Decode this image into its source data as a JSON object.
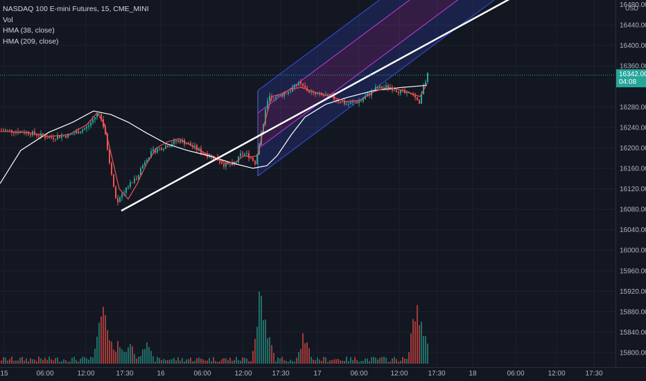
{
  "legend": {
    "symbol": "NASDAQ 100 E-mini Futures, 15, CME_MINI",
    "vol": "Vol",
    "hma1": "HMA (38, close)",
    "hma2": "HMA (209, close)"
  },
  "currency": "USD",
  "last_price": {
    "value": "16342.00",
    "countdown": "04:08",
    "price": 16342
  },
  "colors": {
    "background": "#131722",
    "grid": "#1e222d",
    "up": "#26a69a",
    "down": "#ef5350",
    "hma_fast": "#ef5350",
    "hma_slow": "#ffffff",
    "trendline": "#ffffff",
    "channel_outer": "#3d5afe",
    "channel_inner": "#e040fb"
  },
  "chart_data": {
    "type": "candlestick",
    "price_axis": {
      "ticks": [
        16440,
        16400,
        16360,
        16280,
        16240,
        16200,
        16160,
        16120,
        16080,
        16040,
        16000,
        15960,
        15920,
        15880,
        15840,
        15800
      ],
      "top_label": "16480.00"
    },
    "time_axis": {
      "labels": [
        "15",
        "06:00",
        "12:00",
        "17:30",
        "16",
        "06:00",
        "12:00",
        "17:30",
        "17",
        "06:00",
        "12:00",
        "17:30",
        "18",
        "06:00",
        "12:00",
        "17:30"
      ]
    },
    "price_path": [
      [
        0,
        16235
      ],
      [
        40,
        16230
      ],
      [
        70,
        16220
      ],
      [
        100,
        16225
      ],
      [
        125,
        16240
      ],
      [
        140,
        16268
      ],
      [
        150,
        16240
      ],
      [
        158,
        16160
      ],
      [
        168,
        16090
      ],
      [
        180,
        16120
      ],
      [
        195,
        16140
      ],
      [
        210,
        16180
      ],
      [
        222,
        16195
      ],
      [
        240,
        16205
      ],
      [
        258,
        16215
      ],
      [
        275,
        16205
      ],
      [
        292,
        16190
      ],
      [
        310,
        16180
      ],
      [
        325,
        16165
      ],
      [
        338,
        16168
      ],
      [
        348,
        16190
      ],
      [
        358,
        16185
      ],
      [
        368,
        16170
      ],
      [
        376,
        16230
      ],
      [
        386,
        16300
      ],
      [
        400,
        16300
      ],
      [
        415,
        16310
      ],
      [
        430,
        16325
      ],
      [
        450,
        16305
      ],
      [
        475,
        16300
      ],
      [
        500,
        16285
      ],
      [
        520,
        16292
      ],
      [
        540,
        16315
      ],
      [
        560,
        16320
      ],
      [
        580,
        16308
      ],
      [
        595,
        16300
      ],
      [
        605,
        16285
      ],
      [
        610,
        16325
      ],
      [
        616,
        16342
      ]
    ],
    "hma_fast": [
      [
        0,
        16232
      ],
      [
        40,
        16230
      ],
      [
        70,
        16222
      ],
      [
        100,
        16226
      ],
      [
        125,
        16245
      ],
      [
        140,
        16268
      ],
      [
        150,
        16248
      ],
      [
        160,
        16190
      ],
      [
        172,
        16120
      ],
      [
        185,
        16100
      ],
      [
        198,
        16130
      ],
      [
        212,
        16170
      ],
      [
        226,
        16200
      ],
      [
        242,
        16212
      ],
      [
        258,
        16218
      ],
      [
        275,
        16205
      ],
      [
        292,
        16192
      ],
      [
        310,
        16182
      ],
      [
        325,
        16170
      ],
      [
        340,
        16172
      ],
      [
        352,
        16185
      ],
      [
        362,
        16182
      ],
      [
        372,
        16185
      ],
      [
        382,
        16250
      ],
      [
        392,
        16300
      ],
      [
        405,
        16305
      ],
      [
        420,
        16315
      ],
      [
        435,
        16318
      ],
      [
        455,
        16308
      ],
      [
        478,
        16300
      ],
      [
        500,
        16290
      ],
      [
        520,
        16293
      ],
      [
        540,
        16310
      ],
      [
        560,
        16318
      ],
      [
        580,
        16312
      ],
      [
        596,
        16305
      ],
      [
        606,
        16300
      ],
      [
        616,
        16325
      ]
    ],
    "hma_slow": [
      [
        0,
        16130
      ],
      [
        30,
        16195
      ],
      [
        70,
        16230
      ],
      [
        105,
        16250
      ],
      [
        135,
        16272
      ],
      [
        160,
        16265
      ],
      [
        185,
        16250
      ],
      [
        210,
        16230
      ],
      [
        240,
        16208
      ],
      [
        270,
        16195
      ],
      [
        300,
        16185
      ],
      [
        335,
        16170
      ],
      [
        365,
        16160
      ],
      [
        385,
        16165
      ],
      [
        400,
        16185
      ],
      [
        420,
        16225
      ],
      [
        440,
        16260
      ],
      [
        470,
        16285
      ],
      [
        500,
        16298
      ],
      [
        540,
        16312
      ],
      [
        580,
        16318
      ],
      [
        616,
        16322
      ]
    ],
    "trendline": {
      "x1": 175,
      "y1": 16077,
      "x2": 748,
      "y2": 16500
    },
    "channel": {
      "x_start": 372,
      "x_end": 860,
      "upper_start": 16312,
      "upper_end": 16500,
      "inner_upper_start": 16268,
      "inner_upper_end": 16500,
      "mid_start": 16232,
      "mid_end": 16500,
      "inner_lower_start": 16198,
      "inner_lower_end": 16492,
      "lower_start": 16145,
      "lower_end": 16500
    },
    "volume_spikes": [
      [
        148,
        0.9
      ],
      [
        152,
        0.58
      ],
      [
        157,
        0.45
      ],
      [
        172,
        0.3
      ],
      [
        185,
        0.28
      ],
      [
        210,
        0.3
      ],
      [
        210,
        0.25
      ],
      [
        376,
        1.0
      ],
      [
        380,
        0.55
      ],
      [
        384,
        0.45
      ],
      [
        438,
        0.4
      ],
      [
        601,
        0.86
      ],
      [
        606,
        0.6
      ],
      [
        612,
        0.4
      ]
    ]
  }
}
